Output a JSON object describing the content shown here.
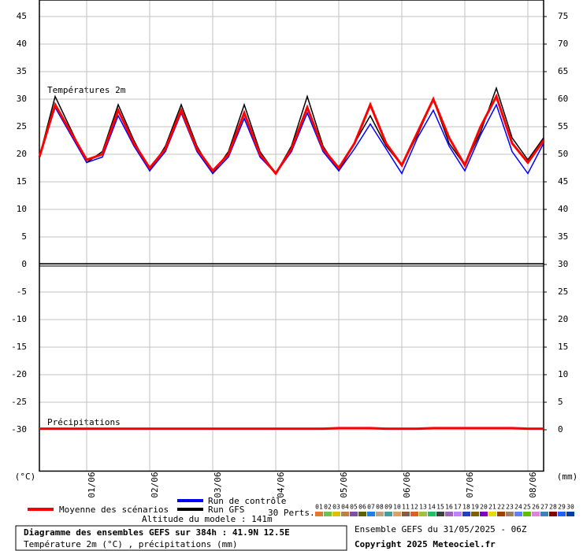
{
  "chart_data": {
    "type": "line",
    "x": [
      0,
      6,
      12,
      18,
      24,
      30,
      36,
      42,
      48,
      54,
      60,
      66,
      72,
      78,
      84,
      90,
      96,
      102,
      108,
      114,
      120,
      126,
      132,
      138,
      144,
      150,
      156,
      162,
      168,
      174,
      180,
      186,
      192
    ],
    "xlim": [
      0,
      192
    ],
    "xticks": [
      {
        "value": 18,
        "label": "01/06"
      },
      {
        "value": 42,
        "label": "02/06"
      },
      {
        "value": 66,
        "label": "03/06"
      },
      {
        "value": 90,
        "label": "04/06"
      },
      {
        "value": 114,
        "label": "05/06"
      },
      {
        "value": 138,
        "label": "06/06"
      },
      {
        "value": 162,
        "label": "07/06"
      },
      {
        "value": 186,
        "label": "08/06"
      }
    ],
    "ylim": [
      -37.5,
      48
    ],
    "yticks": [
      45,
      40,
      35,
      30,
      25,
      20,
      15,
      10,
      5,
      0,
      -5,
      -10,
      -15,
      -20,
      -25,
      -30
    ],
    "y2lim": [
      -7.5,
      78
    ],
    "y2ticks": [
      75,
      70,
      65,
      60,
      55,
      50,
      45,
      40,
      35,
      30,
      25,
      20,
      15,
      10,
      5,
      0
    ],
    "grid": true,
    "legend": "bottom",
    "y_label": "(°C)",
    "y2_label": "(mm)",
    "panel_labels": [
      "Températures 2m",
      "Précipitations"
    ],
    "series": [
      {
        "name": "Moyenne des scénarios",
        "color": "#ff0000",
        "values": [
          19.5,
          29,
          24,
          19,
          20,
          28,
          22,
          17.5,
          21,
          28,
          21,
          17,
          20,
          27.5,
          20,
          16.5,
          21,
          28.5,
          21,
          17.5,
          22,
          29,
          22,
          18,
          24,
          30,
          23,
          18,
          25,
          30.5,
          22,
          18.5,
          22.5
        ]
      },
      {
        "name": "Run de contrôle",
        "color": "#0000ff",
        "values": [
          19.5,
          28.5,
          23.5,
          18.5,
          19.5,
          27,
          21.5,
          17,
          20.5,
          27.5,
          20.5,
          16.5,
          19.5,
          26.5,
          19.5,
          16.5,
          20.5,
          27.5,
          20.5,
          17,
          21,
          25.5,
          21,
          16.5,
          23,
          28,
          21.5,
          17,
          23.5,
          29,
          20.5,
          16.5,
          22
        ]
      },
      {
        "name": "Run GFS",
        "color": "#000000",
        "values": [
          19.5,
          30.5,
          24.5,
          18.5,
          20.5,
          29,
          22.5,
          17,
          21.5,
          29,
          21.5,
          16.5,
          20.5,
          29,
          20.5,
          16.5,
          21.5,
          30.5,
          21.5,
          17,
          22,
          27,
          21.5,
          18,
          23.5,
          30,
          22,
          18,
          24,
          32,
          23,
          19,
          23
        ]
      },
      {
        "color": "#ff0000",
        "axis": "y2",
        "values": [
          0.2,
          0.2,
          0.2,
          0.2,
          0.2,
          0.2,
          0.2,
          0.2,
          0.2,
          0.2,
          0.2,
          0.2,
          0.2,
          0.2,
          0.2,
          0.2,
          0.2,
          0.2,
          0.2,
          0.3,
          0.3,
          0.3,
          0.2,
          0.2,
          0.2,
          0.3,
          0.3,
          0.3,
          0.3,
          0.3,
          0.3,
          0.2,
          0.2
        ]
      }
    ],
    "perturbations_label": "30 Perts.",
    "perturbations": [
      {
        "label": "01",
        "color": "#e07830"
      },
      {
        "label": "02",
        "color": "#70c050"
      },
      {
        "label": "03",
        "color": "#e0c000"
      },
      {
        "label": "04",
        "color": "#c08040"
      },
      {
        "label": "05",
        "color": "#8050a0"
      },
      {
        "label": "06",
        "color": "#606000"
      },
      {
        "label": "07",
        "color": "#2080e0"
      },
      {
        "label": "08",
        "color": "#c0a080"
      },
      {
        "label": "09",
        "color": "#40a0a0"
      },
      {
        "label": "10",
        "color": "#e0a060"
      },
      {
        "label": "11",
        "color": "#806040"
      },
      {
        "label": "12",
        "color": "#e06020"
      },
      {
        "label": "13",
        "color": "#a0c040"
      },
      {
        "label": "14",
        "color": "#20c060"
      },
      {
        "label": "15",
        "color": "#404040"
      },
      {
        "label": "16",
        "color": "#a060c0"
      },
      {
        "label": "17",
        "color": "#c080ff"
      },
      {
        "label": "18",
        "color": "#2040c0"
      },
      {
        "label": "19",
        "color": "#806000"
      },
      {
        "label": "20",
        "color": "#8000c0"
      },
      {
        "label": "21",
        "color": "#e0e000"
      },
      {
        "label": "22",
        "color": "#a04000"
      },
      {
        "label": "23",
        "color": "#a08060"
      },
      {
        "label": "24",
        "color": "#6080ff"
      },
      {
        "label": "25",
        "color": "#60c000"
      },
      {
        "label": "26",
        "color": "#e080e0"
      },
      {
        "label": "27",
        "color": "#4080c0"
      },
      {
        "label": "28",
        "color": "#800000"
      },
      {
        "label": "29",
        "color": "#2060ff"
      },
      {
        "label": "30",
        "color": "#0040a0"
      }
    ],
    "altitude": "Altitude du modele : 141m",
    "footer_title": "Diagramme des ensembles GEFS sur 384h : 41.9N 12.5E",
    "footer_subtitle": "Température 2m (°C) , précipitations (mm)",
    "run_info": "Ensemble GEFS du 31/05/2025 - 06Z",
    "copyright": "Copyright 2025 Meteociel.fr"
  }
}
